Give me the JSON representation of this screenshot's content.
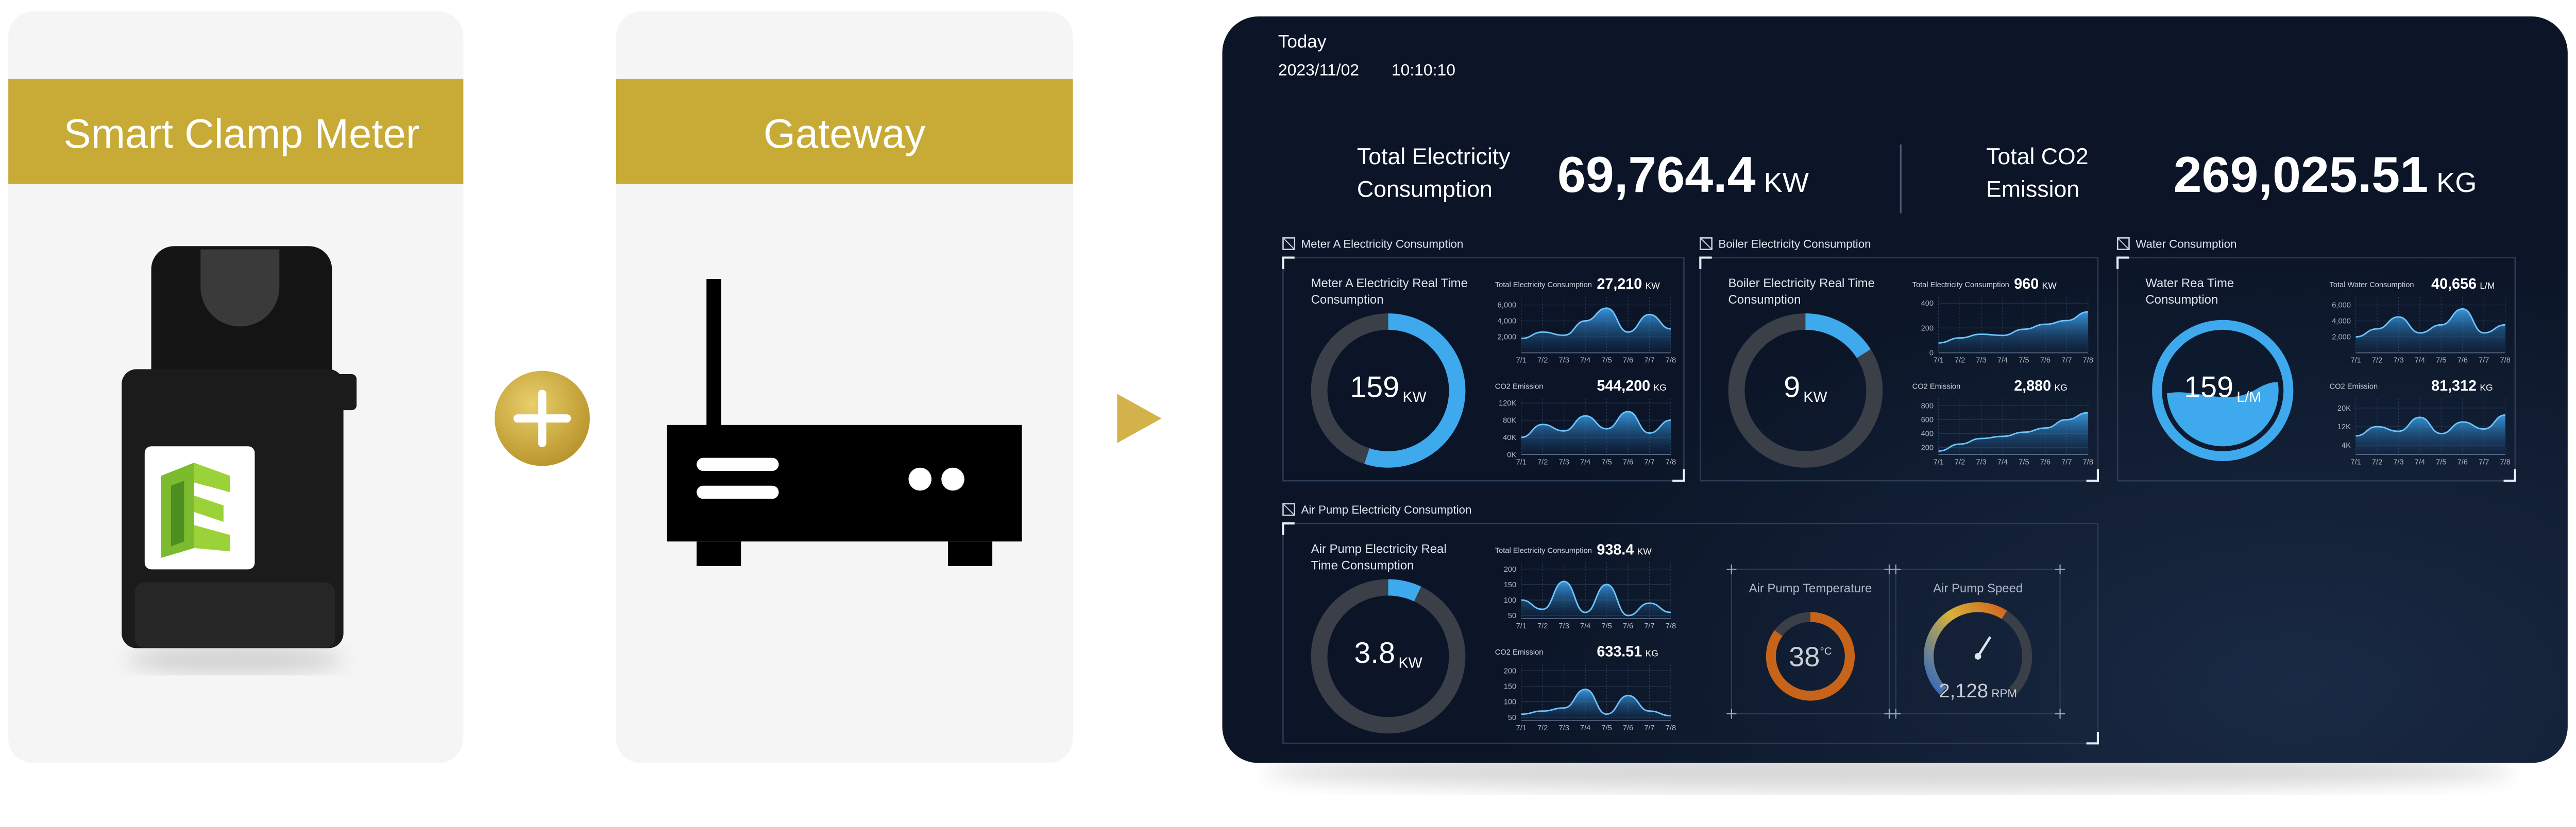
{
  "cards": [
    {
      "title": "Smart Clamp Meter"
    },
    {
      "title": "Gateway"
    }
  ],
  "dashboard": {
    "today": "Today",
    "date": "2023/11/02",
    "time": "10:10:10",
    "totals": [
      {
        "label": [
          "Total Electricity",
          "Consumption"
        ],
        "value": "69,764.4",
        "unit": "KW"
      },
      {
        "label": [
          "Total CO2",
          "Emission"
        ],
        "value": "269,025.51",
        "unit": "KG"
      }
    ],
    "panels": [
      {
        "title": "Meter A Electricity Consumption",
        "gauge": {
          "kind": "ring",
          "label": [
            "Meter A Electricity Real Time",
            "Consumption"
          ],
          "value": "159",
          "unit": "KW",
          "fill": 55
        },
        "charts": [
          {
            "label": "Total Electricity Consumption",
            "value": "27,210",
            "unit": "KW",
            "ylim": [
              0,
              7000
            ],
            "yticks": [
              {
                "value": 6000,
                "label": "6,000"
              },
              {
                "value": 4000,
                "label": "4,000"
              },
              {
                "value": 2000,
                "label": "2,000"
              }
            ],
            "categories": [
              "7/1",
              "7/2",
              "7/3",
              "7/4",
              "7/5",
              "7/6",
              "7/7",
              "7/8"
            ],
            "values": [
              1800,
              2600,
              2200,
              4000,
              5600,
              2600,
              4800,
              3000
            ]
          },
          {
            "label": "CO2 Emission",
            "value": "544,200",
            "unit": "KG",
            "ylim": [
              0,
              130000
            ],
            "yticks": [
              {
                "value": 120000,
                "label": "120K"
              },
              {
                "value": 80000,
                "label": "80K"
              },
              {
                "value": 40000,
                "label": "40K"
              },
              {
                "value": 0,
                "label": "0K"
              }
            ],
            "categories": [
              "7/1",
              "7/2",
              "7/3",
              "7/4",
              "7/5",
              "7/6",
              "7/7",
              "7/8"
            ],
            "values": [
              40000,
              70000,
              55000,
              90000,
              60000,
              100000,
              50000,
              80000
            ]
          }
        ]
      },
      {
        "title": "Boiler Electricity Consumption",
        "gauge": {
          "kind": "ring",
          "label": [
            "Boiler Electricity Real Time",
            "Consumption"
          ],
          "value": "9",
          "unit": "KW",
          "fill": 16
        },
        "charts": [
          {
            "label": "Total Electricity Consumption",
            "value": "960",
            "unit": "KW",
            "ylim": [
              0,
              450
            ],
            "yticks": [
              400,
              200,
              0
            ],
            "categories": [
              "7/1",
              "7/2",
              "7/3",
              "7/4",
              "7/5",
              "7/6",
              "7/7",
              "7/8"
            ],
            "values": [
              80,
              120,
              150,
              140,
              190,
              230,
              260,
              330
            ]
          },
          {
            "label": "CO2 Emission",
            "value": "2,880",
            "unit": "KG",
            "ylim": [
              100,
              900
            ],
            "yticks": [
              800,
              600,
              400,
              200
            ],
            "categories": [
              "7/1",
              "7/2",
              "7/3",
              "7/4",
              "7/5",
              "7/6",
              "7/7",
              "7/8"
            ],
            "values": [
              150,
              250,
              330,
              360,
              420,
              480,
              600,
              700
            ]
          }
        ]
      },
      {
        "title": "Water Consumption",
        "gauge": {
          "kind": "water",
          "label": [
            "Water Rea Time",
            "Consumption"
          ],
          "value": "159",
          "unit": "L/M",
          "fill": 45
        },
        "charts": [
          {
            "label": "Total Water Consumption",
            "value": "40,656",
            "unit": "L/M",
            "ylim": [
              0,
              7000
            ],
            "yticks": [
              {
                "value": 6000,
                "label": "6,000"
              },
              {
                "value": 4000,
                "label": "4,000"
              },
              {
                "value": 2000,
                "label": "2,000"
              }
            ],
            "categories": [
              "7/1",
              "7/2",
              "7/3",
              "7/4",
              "7/5",
              "7/6",
              "7/7",
              "7/8"
            ],
            "values": [
              2000,
              3000,
              4500,
              2500,
              3500,
              5500,
              2500,
              3500
            ]
          },
          {
            "label": "CO2 Emission",
            "value": "81,312",
            "unit": "KG",
            "ylim": [
              0,
              24000
            ],
            "yticks": [
              {
                "value": 20000,
                "label": "20K"
              },
              {
                "value": 12000,
                "label": "12K"
              },
              {
                "value": 4000,
                "label": "4K"
              }
            ],
            "categories": [
              "7/1",
              "7/2",
              "7/3",
              "7/4",
              "7/5",
              "7/6",
              "7/7",
              "7/8"
            ],
            "values": [
              8000,
              12000,
              10000,
              16000,
              9000,
              14000,
              11000,
              17000
            ]
          }
        ]
      },
      {
        "title": "Air Pump Electricity Consumption",
        "gauge": {
          "kind": "ring",
          "label": [
            "Air Pump Electricity Real",
            "Time Consumption"
          ],
          "value": "3.8",
          "unit": "KW",
          "fill": 7
        },
        "charts": [
          {
            "label": "Total Electricity Consumption",
            "value": "938.4",
            "unit": "KW",
            "ylim": [
              40,
              220
            ],
            "yticks": [
              200,
              150,
              100,
              50
            ],
            "categories": [
              "7/1",
              "7/2",
              "7/3",
              "7/4",
              "7/5",
              "7/6",
              "7/7",
              "7/8"
            ],
            "values": [
              100,
              70,
              160,
              60,
              150,
              50,
              90,
              60
            ]
          },
          {
            "label": "CO2 Emission",
            "value": "633.51",
            "unit": "KG",
            "ylim": [
              40,
              220
            ],
            "yticks": [
              200,
              150,
              100,
              50
            ],
            "categories": [
              "7/1",
              "7/2",
              "7/3",
              "7/4",
              "7/5",
              "7/6",
              "7/7",
              "7/8"
            ],
            "values": [
              60,
              70,
              80,
              140,
              60,
              120,
              70,
              55
            ]
          }
        ]
      }
    ],
    "extra_gauges": [
      {
        "kind": "temp",
        "title": "Air Pump Temperature",
        "value": "38",
        "unit": "°C",
        "fill": 85
      },
      {
        "kind": "speed",
        "title": "Air Pump Speed",
        "value": "2,128",
        "unit": "RPM",
        "fill": 62
      }
    ]
  }
}
